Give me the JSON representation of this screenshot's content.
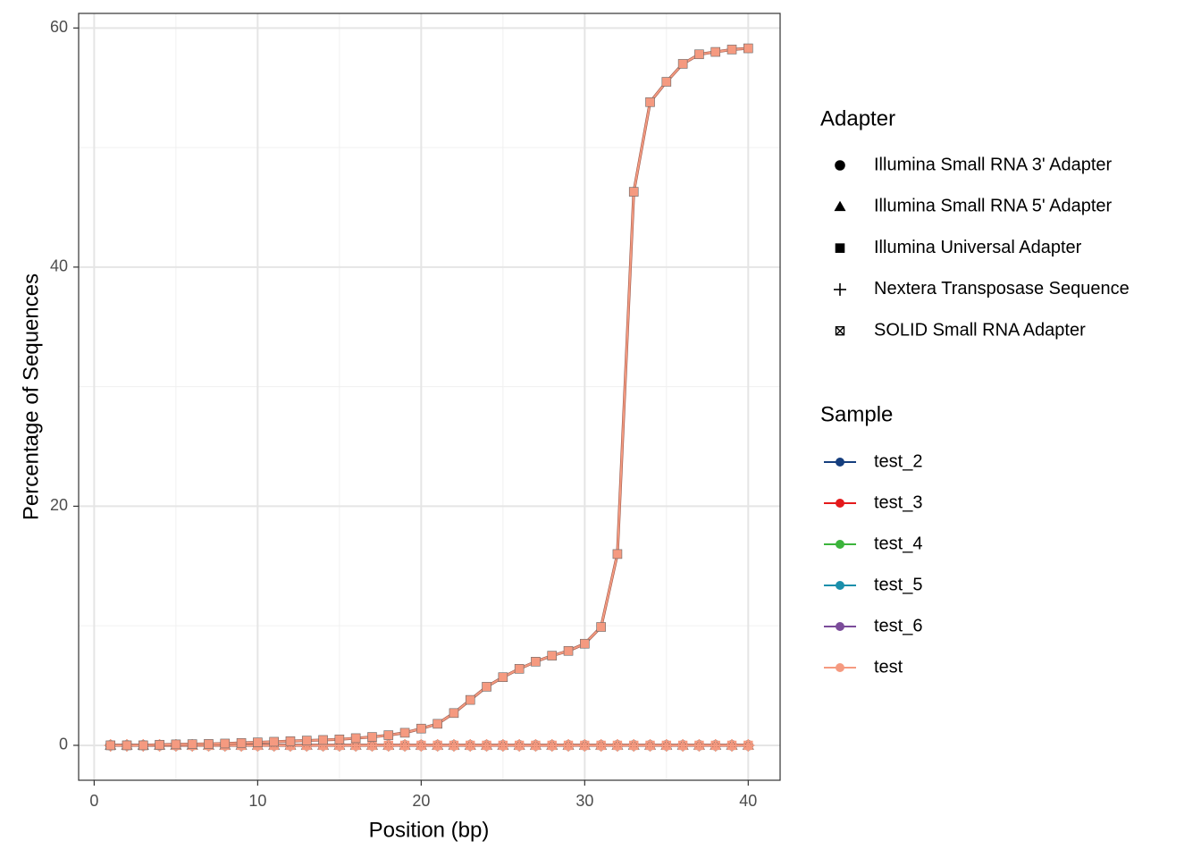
{
  "chart_data": {
    "type": "line",
    "x_label": "Position (bp)",
    "y_label": "Percentage of Sequences",
    "x": [
      1,
      2,
      3,
      4,
      5,
      6,
      7,
      8,
      9,
      10,
      11,
      12,
      13,
      14,
      15,
      16,
      17,
      18,
      19,
      20,
      21,
      22,
      23,
      24,
      25,
      26,
      27,
      28,
      29,
      30,
      31,
      32,
      33,
      34,
      35,
      36,
      37,
      38,
      39,
      40
    ],
    "xlim": [
      -0.95,
      41.95
    ],
    "xticks": [
      0,
      10,
      20,
      30,
      40
    ],
    "x_minor_ticks": [
      5,
      15,
      25,
      35
    ],
    "ylim": [
      -2.92,
      61.22
    ],
    "yticks": [
      0,
      20,
      40,
      60
    ],
    "y_minor_ticks": [
      10,
      30,
      50
    ],
    "grid": true,
    "legend_adapter": {
      "title": "Adapter",
      "items": [
        {
          "name": "Illumina Small RNA 3' Adapter",
          "shape": "circle"
        },
        {
          "name": "Illumina Small RNA 5' Adapter",
          "shape": "triangle"
        },
        {
          "name": "Illumina Universal Adapter",
          "shape": "square"
        },
        {
          "name": "Nextera Transposase Sequence",
          "shape": "plus"
        },
        {
          "name": "SOLID Small RNA Adapter",
          "shape": "square-cross"
        }
      ]
    },
    "legend_sample": {
      "title": "Sample",
      "items": [
        {
          "name": "test_2",
          "color": "#153e7e"
        },
        {
          "name": "test_3",
          "color": "#e41a1c"
        },
        {
          "name": "test_4",
          "color": "#3cb43c"
        },
        {
          "name": "test_5",
          "color": "#1b8fab"
        },
        {
          "name": "test_6",
          "color": "#7b4c9a"
        },
        {
          "name": "test",
          "color": "#f59a80"
        }
      ]
    },
    "series": [
      {
        "sample": "test",
        "adapter": "Illumina Small RNA 3' Adapter",
        "values": [
          0,
          0,
          0,
          0,
          0,
          0,
          0,
          0,
          0,
          0,
          0,
          0,
          0,
          0,
          0,
          0,
          0,
          0,
          0,
          0,
          0,
          0,
          0,
          0,
          0,
          0,
          0,
          0,
          0,
          0,
          0,
          0,
          0,
          0,
          0,
          0,
          0,
          0,
          0,
          0
        ]
      },
      {
        "sample": "test",
        "adapter": "Illumina Small RNA 5' Adapter",
        "values": [
          0,
          0,
          0,
          0,
          0,
          0,
          0,
          0,
          0,
          0,
          0,
          0,
          0,
          0,
          0,
          0,
          0,
          0,
          0,
          0,
          0,
          0,
          0,
          0,
          0,
          0,
          0,
          0,
          0,
          0,
          0,
          0,
          0,
          0,
          0,
          0,
          0,
          0,
          0,
          0
        ]
      },
      {
        "sample": "test",
        "adapter": "Nextera Transposase Sequence",
        "values": [
          0,
          0,
          0,
          0,
          0,
          0,
          0,
          0,
          0,
          0,
          0,
          0,
          0,
          0,
          0,
          0,
          0,
          0,
          0,
          0,
          0,
          0,
          0,
          0,
          0,
          0,
          0,
          0,
          0,
          0,
          0,
          0,
          0,
          0,
          0,
          0,
          0,
          0,
          0,
          0
        ]
      },
      {
        "sample": "test",
        "adapter": "SOLID Small RNA Adapter",
        "values": [
          0,
          0,
          0,
          0,
          0,
          0,
          0,
          0,
          0,
          0,
          0,
          0,
          0,
          0,
          0,
          0,
          0,
          0,
          0,
          0,
          0,
          0,
          0,
          0,
          0,
          0,
          0,
          0,
          0,
          0,
          0,
          0,
          0,
          0,
          0,
          0,
          0,
          0,
          0,
          0
        ]
      },
      {
        "sample": "test",
        "adapter": "Illumina Universal Adapter",
        "values": [
          0,
          0,
          0,
          0.05,
          0.08,
          0.1,
          0.12,
          0.15,
          0.2,
          0.25,
          0.3,
          0.35,
          0.4,
          0.45,
          0.5,
          0.6,
          0.7,
          0.85,
          1.05,
          1.4,
          1.8,
          2.7,
          3.8,
          4.9,
          5.7,
          6.4,
          7.0,
          7.5,
          7.9,
          8.5,
          9.9,
          16.0,
          46.3,
          53.8,
          55.5,
          57.0,
          57.8,
          58.0,
          58.2,
          58.3
        ]
      }
    ]
  }
}
